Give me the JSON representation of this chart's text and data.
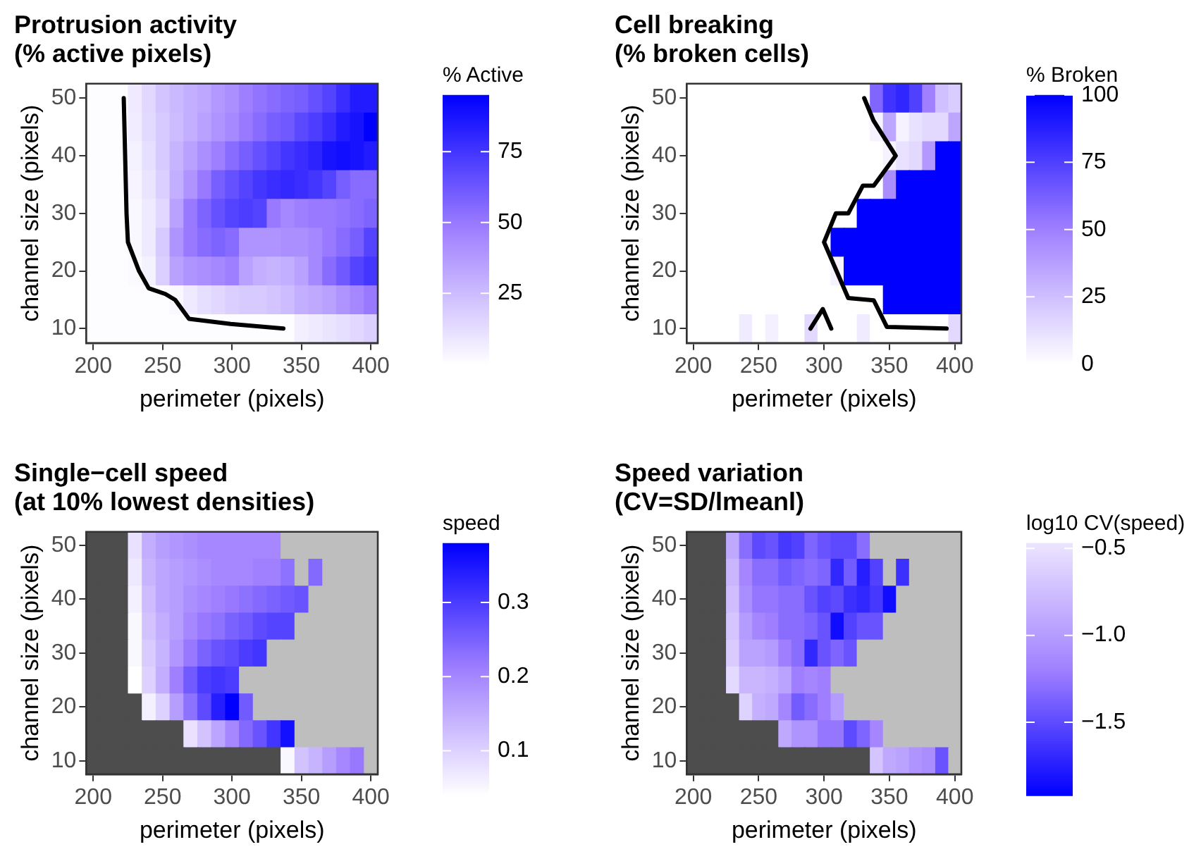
{
  "chart_data": [
    {
      "type": "heatmap",
      "title": "Protrusion activity\n(% active pixels)",
      "xlabel": "perimeter (pixels)",
      "ylabel": "channel size (pixels)",
      "clabel": "% Active",
      "xlim": [
        195,
        405
      ],
      "xticks": [
        200,
        250,
        300,
        350,
        400
      ],
      "ylim": [
        7.5,
        52.5
      ],
      "yticks": [
        10,
        20,
        30,
        40,
        50
      ],
      "clim": [
        0,
        95
      ],
      "cticks": [
        25,
        50,
        75
      ],
      "colors": [
        "#ffffff",
        "#a080ff",
        "#0000ff"
      ],
      "cells": [
        [
          1,
          1,
          1,
          8,
          15,
          22,
          26,
          30,
          33,
          38,
          42,
          48,
          52,
          55,
          58,
          60,
          65,
          70,
          78,
          85,
          85
        ],
        [
          1,
          1,
          1,
          7,
          14,
          20,
          25,
          30,
          35,
          40,
          44,
          50,
          55,
          60,
          62,
          68,
          72,
          78,
          85,
          88,
          95
        ],
        [
          1,
          1,
          1,
          5,
          12,
          20,
          28,
          35,
          42,
          48,
          55,
          60,
          65,
          70,
          75,
          78,
          82,
          88,
          90,
          88,
          85
        ],
        [
          1,
          1,
          1,
          4,
          10,
          18,
          30,
          40,
          50,
          60,
          65,
          70,
          75,
          78,
          80,
          78,
          75,
          70,
          60,
          55,
          55
        ],
        [
          1,
          1,
          1,
          3,
          8,
          15,
          35,
          50,
          58,
          65,
          70,
          72,
          70,
          50,
          45,
          48,
          50,
          50,
          52,
          55,
          58
        ],
        [
          1,
          1,
          1,
          3,
          8,
          20,
          40,
          50,
          55,
          58,
          55,
          40,
          40,
          40,
          42,
          42,
          45,
          50,
          55,
          60,
          70
        ],
        [
          1,
          1,
          1,
          2,
          5,
          18,
          35,
          40,
          42,
          45,
          48,
          35,
          30,
          28,
          30,
          35,
          45,
          55,
          62,
          70,
          75
        ],
        [
          1,
          1,
          1,
          1,
          1,
          1,
          3,
          8,
          12,
          15,
          18,
          20,
          20,
          22,
          25,
          30,
          32,
          35,
          40,
          45,
          50
        ],
        [
          1,
          1,
          1,
          1,
          1,
          1,
          1,
          1,
          1,
          1,
          1,
          1,
          1,
          1,
          1,
          6,
          8,
          10,
          12,
          15,
          18
        ]
      ],
      "series": [
        {
          "type": "line",
          "color": "#000000",
          "x": [
            222,
            223,
            224,
            225,
            233,
            240,
            252,
            259,
            269,
            299,
            337
          ],
          "values": [
            50,
            40,
            30,
            25,
            20,
            17,
            16,
            15,
            11.7,
            10.8,
            10
          ]
        }
      ]
    },
    {
      "type": "heatmap",
      "title": "Cell breaking\n(% broken cells)",
      "xlabel": "perimeter (pixels)",
      "ylabel": "channel size (pixels)",
      "clabel": "% Broken",
      "xlim": [
        195,
        405
      ],
      "xticks": [
        200,
        250,
        300,
        350,
        400
      ],
      "ylim": [
        7.5,
        52.5
      ],
      "yticks": [
        10,
        20,
        30,
        40,
        50
      ],
      "clim": [
        0,
        100
      ],
      "cticks": [
        0,
        25,
        50,
        75,
        100
      ],
      "colors": [
        "#ffffff",
        "#a080ff",
        "#0000ff"
      ],
      "cells": [
        [
          0,
          0,
          0,
          0,
          0,
          0,
          0,
          0,
          0,
          0,
          0,
          0,
          0,
          0,
          60,
          80,
          85,
          75,
          50,
          25,
          20
        ],
        [
          0,
          0,
          0,
          0,
          0,
          0,
          0,
          0,
          0,
          0,
          0,
          0,
          0,
          0,
          5,
          35,
          5,
          12,
          15,
          15,
          35
        ],
        [
          0,
          0,
          0,
          0,
          0,
          0,
          0,
          0,
          0,
          0,
          0,
          0,
          0,
          0,
          0,
          5,
          12,
          15,
          40,
          100,
          100
        ],
        [
          0,
          0,
          0,
          0,
          0,
          0,
          0,
          0,
          0,
          0,
          0,
          0,
          0,
          0,
          0,
          45,
          100,
          100,
          100,
          100,
          100
        ],
        [
          0,
          0,
          0,
          0,
          0,
          0,
          0,
          0,
          0,
          0,
          0,
          0,
          0,
          100,
          100,
          100,
          100,
          100,
          100,
          100,
          100
        ],
        [
          0,
          0,
          0,
          0,
          0,
          0,
          0,
          0,
          0,
          0,
          0,
          100,
          100,
          100,
          100,
          100,
          100,
          100,
          100,
          100,
          100
        ],
        [
          0,
          0,
          0,
          0,
          0,
          0,
          0,
          0,
          0,
          0,
          0,
          5,
          100,
          100,
          100,
          100,
          100,
          100,
          100,
          100,
          100
        ],
        [
          0,
          0,
          0,
          0,
          0,
          0,
          0,
          0,
          0,
          0,
          0,
          0,
          0,
          0,
          0,
          100,
          100,
          100,
          100,
          100,
          100
        ],
        [
          0,
          0,
          0,
          0,
          8,
          0,
          6,
          0,
          0,
          15,
          0,
          0,
          0,
          8,
          0,
          0,
          0,
          0,
          0,
          0,
          15
        ]
      ],
      "series": [
        {
          "type": "line",
          "color": "#000000",
          "x": [
            330.7,
            337.8,
            354.8,
            338,
            329.6,
            318.5,
            309,
            300,
            318.5,
            338,
            348,
            393.7
          ],
          "values": [
            50,
            46.1,
            40,
            34.8,
            34.8,
            30,
            30,
            25,
            15.3,
            14.9,
            10.3,
            10
          ]
        },
        {
          "type": "line",
          "color": "#000000",
          "x": [
            289.6,
            299,
            305.5
          ],
          "values": [
            10,
            13.4,
            10
          ]
        }
      ]
    },
    {
      "type": "heatmap",
      "title": "Single−cell speed\n(at 10% lowest densities)",
      "xlabel": "perimeter (pixels)",
      "ylabel": "channel size (pixels)",
      "clabel": "speed",
      "xlim": [
        195,
        405
      ],
      "xticks": [
        200,
        250,
        300,
        350,
        400
      ],
      "ylim": [
        7.5,
        52.5
      ],
      "yticks": [
        10,
        20,
        30,
        40,
        50
      ],
      "clim": [
        0.04,
        0.38
      ],
      "cticks": [
        0.1,
        0.2,
        0.3
      ],
      "colors": [
        "#ffffff",
        "#a080ff",
        "#0000ff"
      ],
      "cells": [
        [
          null,
          null,
          null,
          0.08,
          0.15,
          0.17,
          0.18,
          0.19,
          0.2,
          0.2,
          0.2,
          0.2,
          0.2,
          0.2,
          null,
          null,
          null,
          null,
          null,
          null,
          null
        ],
        [
          null,
          null,
          null,
          0.07,
          0.14,
          0.16,
          0.17,
          0.18,
          0.19,
          0.2,
          0.2,
          0.2,
          0.21,
          0.21,
          0.23,
          null,
          0.24,
          null,
          null,
          null,
          null
        ],
        [
          null,
          null,
          null,
          0.06,
          0.13,
          0.16,
          0.17,
          0.19,
          0.2,
          0.21,
          0.22,
          0.23,
          0.24,
          0.25,
          0.26,
          0.27,
          null,
          null,
          null,
          null,
          null
        ],
        [
          null,
          null,
          null,
          0.05,
          0.12,
          0.15,
          0.17,
          0.2,
          0.22,
          0.23,
          0.25,
          0.26,
          0.28,
          0.29,
          0.29,
          null,
          null,
          null,
          null,
          null,
          null
        ],
        [
          null,
          null,
          null,
          0.05,
          0.11,
          0.14,
          0.18,
          0.22,
          0.25,
          0.27,
          0.28,
          0.3,
          0.31,
          null,
          null,
          null,
          null,
          null,
          null,
          null,
          null
        ],
        [
          null,
          null,
          null,
          0.04,
          0.1,
          0.15,
          0.21,
          0.26,
          0.3,
          0.31,
          0.3,
          null,
          null,
          null,
          null,
          null,
          null,
          null,
          null,
          null,
          null
        ],
        [
          null,
          null,
          null,
          null,
          0.06,
          0.1,
          0.17,
          0.23,
          0.28,
          0.34,
          0.38,
          0.26,
          null,
          null,
          null,
          null,
          null,
          null,
          null,
          null,
          null
        ],
        [
          null,
          null,
          null,
          null,
          null,
          null,
          null,
          0.08,
          0.12,
          0.16,
          0.2,
          0.24,
          0.27,
          0.31,
          0.36,
          null,
          null,
          null,
          null,
          null,
          null
        ],
        [
          null,
          null,
          null,
          null,
          null,
          null,
          null,
          null,
          null,
          null,
          null,
          null,
          null,
          null,
          0.05,
          0.12,
          0.14,
          0.17,
          0.2,
          0.22,
          null
        ]
      ]
    },
    {
      "type": "heatmap",
      "title": "Speed variation\n(CV=SD/lmeanl)",
      "xlabel": "perimeter (pixels)",
      "ylabel": "channel size (pixels)",
      "clabel": "log10 CV(speed)",
      "xlim": [
        195,
        405
      ],
      "xticks": [
        200,
        250,
        300,
        350,
        400
      ],
      "ylim": [
        7.5,
        52.5
      ],
      "yticks": [
        10,
        20,
        30,
        40,
        50
      ],
      "clim": [
        -1.92,
        -0.47
      ],
      "cticks": [
        {
          "value": -1.5,
          "label": "−1.5"
        },
        {
          "value": -1.0,
          "label": "−1.0"
        },
        {
          "value": -0.5,
          "label": "−0.5"
        }
      ],
      "colors": [
        "#0000ff",
        "#a080ff",
        "#ece4ff"
      ],
      "cells": [
        [
          null,
          null,
          null,
          -0.9,
          -1.3,
          -1.5,
          -1.45,
          -1.6,
          -1.55,
          -1.35,
          -1.45,
          -1.5,
          -1.5,
          -1.3,
          null,
          null,
          null,
          null,
          null,
          null,
          null
        ],
        [
          null,
          null,
          null,
          -0.8,
          -1.15,
          -1.3,
          -1.3,
          -1.4,
          -1.35,
          -1.3,
          -1.35,
          -1.7,
          -1.4,
          -1.75,
          -1.55,
          null,
          -1.65,
          null,
          null,
          null,
          null
        ],
        [
          null,
          null,
          null,
          -0.75,
          -1.1,
          -1.25,
          -1.25,
          -1.3,
          -1.3,
          -1.45,
          -1.55,
          -1.5,
          -1.65,
          -1.7,
          -1.6,
          -1.85,
          null,
          null,
          null,
          null,
          null
        ],
        [
          null,
          null,
          null,
          -0.7,
          -1.0,
          -1.15,
          -1.2,
          -1.3,
          -1.3,
          -1.35,
          -1.45,
          -1.85,
          -1.55,
          -1.45,
          -1.45,
          null,
          null,
          null,
          null,
          null,
          null
        ],
        [
          null,
          null,
          null,
          -0.65,
          -0.95,
          -0.95,
          -1.0,
          -1.2,
          -1.3,
          -1.7,
          -1.45,
          -1.35,
          -1.45,
          null,
          null,
          null,
          null,
          null,
          null,
          null,
          null
        ],
        [
          null,
          null,
          null,
          -0.55,
          -0.8,
          -0.8,
          -0.85,
          -0.95,
          -1.2,
          -1.15,
          -1.2,
          null,
          null,
          null,
          null,
          null,
          null,
          null,
          null,
          null,
          null
        ],
        [
          null,
          null,
          null,
          null,
          -0.6,
          -0.85,
          -0.9,
          -1.15,
          -1.4,
          -1.3,
          -1.2,
          -1.0,
          null,
          null,
          null,
          null,
          null,
          null,
          null,
          null,
          null
        ],
        [
          null,
          null,
          null,
          null,
          null,
          null,
          null,
          -0.9,
          -1.05,
          -1.05,
          -1.25,
          -1.25,
          -1.5,
          -1.35,
          -1.15,
          null,
          null,
          null,
          null,
          null,
          null
        ],
        [
          null,
          null,
          null,
          null,
          null,
          null,
          null,
          null,
          null,
          null,
          null,
          null,
          null,
          null,
          -0.7,
          -0.9,
          -0.95,
          -1.05,
          -1.1,
          -1.45,
          null
        ]
      ]
    }
  ]
}
